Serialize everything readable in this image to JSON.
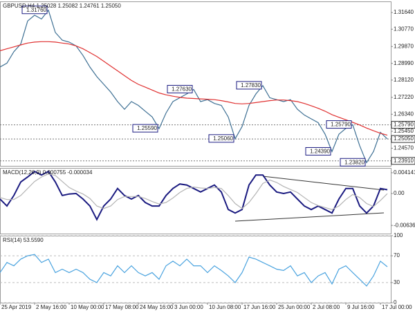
{
  "chart_data": [
    {
      "type": "line",
      "title": "GBPUSD,H4  1.25028 1.25082 1.24761 1.25050",
      "xlim": [
        0,
        56.5
      ],
      "ylim": [
        1.2365,
        1.3222
      ],
      "yticks": [
        {
          "value": 1.3164,
          "label": "1.31640"
        },
        {
          "value": 1.3077,
          "label": "1.30770"
        },
        {
          "value": 1.2987,
          "label": "1.29870"
        },
        {
          "value": 1.2899,
          "label": "1.28990"
        },
        {
          "value": 1.2812,
          "label": "1.28120"
        },
        {
          "value": 1.2722,
          "label": "1.27220"
        },
        {
          "value": 1.2634,
          "label": "1.26340"
        },
        {
          "value": 1.2545,
          "label": "1.25450"
        },
        {
          "value": 1.2457,
          "label": "1.24570"
        }
      ],
      "grid": false,
      "levels": [
        {
          "value": 1.2579,
          "label": "1.25790"
        },
        {
          "value": 1.2505,
          "label": "1.25050"
        },
        {
          "value": 1.2391,
          "label": "1.23910"
        }
      ],
      "annotations": [
        {
          "x": 7,
          "value": 1.3176,
          "label": "1.31760"
        },
        {
          "x": 28,
          "value": 1.2763,
          "label": "1.27630"
        },
        {
          "x": 38,
          "value": 1.2783,
          "label": "1.27830"
        },
        {
          "x": 23,
          "value": 1.2559,
          "label": "1.25590"
        },
        {
          "x": 34,
          "value": 1.2506,
          "label": "1.25060"
        },
        {
          "x": 51,
          "value": 1.2579,
          "label": "1.25790"
        },
        {
          "x": 48,
          "value": 1.2439,
          "label": "1.24390"
        },
        {
          "x": 53,
          "value": 1.2382,
          "label": "1.23820"
        }
      ],
      "series": [
        {
          "color": "#3d6f93",
          "values": [
            1.288,
            1.29,
            1.296,
            1.3,
            1.312,
            1.315,
            1.313,
            1.3176,
            1.306,
            1.302,
            1.301,
            1.299,
            1.294,
            1.288,
            1.283,
            1.279,
            1.275,
            1.27,
            1.266,
            1.27,
            1.268,
            1.265,
            1.262,
            1.2559,
            1.264,
            1.27,
            1.272,
            1.274,
            1.2763,
            1.27,
            1.271,
            1.269,
            1.268,
            1.262,
            1.2506,
            1.257,
            1.268,
            1.274,
            1.2783,
            1.272,
            1.271,
            1.27,
            1.271,
            1.266,
            1.263,
            1.261,
            1.259,
            1.253,
            1.2439,
            1.253,
            1.256,
            1.2579,
            1.247,
            1.2382,
            1.244,
            1.254,
            1.2505
          ]
        },
        {
          "color": "#e03030",
          "values": [
            1.2965,
            1.2975,
            1.2985,
            1.2995,
            1.3005,
            1.301,
            1.3012,
            1.3012,
            1.301,
            1.3005,
            1.3,
            1.299,
            1.2975,
            1.2955,
            1.2935,
            1.291,
            1.2885,
            1.286,
            1.2835,
            1.281,
            1.279,
            1.2775,
            1.276,
            1.2745,
            1.2735,
            1.2728,
            1.2722,
            1.2718,
            1.2716,
            1.2714,
            1.2712,
            1.271,
            1.2705,
            1.2698,
            1.269,
            1.2688,
            1.269,
            1.2695,
            1.27,
            1.2705,
            1.2708,
            1.2708,
            1.2705,
            1.27,
            1.269,
            1.2678,
            1.2665,
            1.265,
            1.2632,
            1.2618,
            1.2605,
            1.2592,
            1.2578,
            1.2562,
            1.2548,
            1.2535,
            1.2525
          ]
        }
      ]
    },
    {
      "type": "line",
      "title": "MACD(12,26,9) 0.000755 -0.000034",
      "xlim": [
        0,
        56.5
      ],
      "ylim": [
        -0.008,
        0.0051
      ],
      "yticks": [
        0.004141,
        {
          "value": 0,
          "label": "0.00"
        },
        -0.006365
      ],
      "grid": false,
      "series": [
        {
          "color": "#1a1a80",
          "values": [
            -0.0011,
            -0.0025,
            -0.0004,
            0.0023,
            0.0033,
            0.0044,
            0.0037,
            0.0044,
            0.0023,
            -0.0004,
            -0.0001,
            0,
            -0.0011,
            -0.0025,
            -0.0052,
            -0.0025,
            -0.0011,
            0.001,
            -0.0004,
            -0.0011,
            -0.0004,
            -0.0018,
            -0.0025,
            -0.0025,
            -0.0004,
            0.001,
            0.0019,
            0.0017,
            0.001,
            0.0003,
            0.001,
            0.0017,
            0.0003,
            -0.0032,
            -0.0039,
            -0.0032,
            0.0017,
            0.0037,
            0.0037,
            0.0017,
            0.0003,
            0,
            0.0003,
            -0.0011,
            -0.0025,
            -0.0032,
            -0.0025,
            -0.0032,
            -0.0039,
            -0.0011,
            0.001,
            0.001,
            -0.0025,
            -0.0039,
            -0.0025,
            0.001,
            0.000755
          ]
        },
        {
          "color": "#b4b4b4",
          "values": [
            -0.0008,
            -0.0012,
            -0.0012,
            -0.0004,
            0.001,
            0.0024,
            0.0033,
            0.0039,
            0.0036,
            0.0024,
            0.0012,
            0.0005,
            -0.0001,
            -0.001,
            -0.0025,
            -0.003,
            -0.0025,
            -0.0012,
            -0.0006,
            -0.0006,
            -0.0006,
            -0.001,
            -0.0016,
            -0.0021,
            -0.0018,
            -0.0009,
            0.0002,
            0.001,
            0.0013,
            0.0011,
            0.001,
            0.0012,
            0.001,
            -0.0004,
            -0.002,
            -0.003,
            -0.0018,
            0,
            0.002,
            0.0027,
            0.0022,
            0.0014,
            0.0008,
            0.0002,
            -0.0008,
            -0.0018,
            -0.0024,
            -0.0028,
            -0.0032,
            -0.0025,
            -0.0012,
            -0.0002,
            -0.0008,
            -0.002,
            -0.0026,
            -0.0014,
            -3.4e-05
          ]
        }
      ]
    },
    {
      "type": "line",
      "title": "RSI(14) 53.5590",
      "xlim": [
        0,
        56.5
      ],
      "ylim": [
        0,
        100
      ],
      "yticks": [
        100,
        70,
        30,
        0
      ],
      "grid": true,
      "xticks": [
        {
          "value": 0,
          "label": "25 Apr 2019"
        },
        {
          "value": 5,
          "label": "2 May 16:00"
        },
        {
          "value": 10,
          "label": "10 May 00:00"
        },
        {
          "value": 15,
          "label": "17 May 08:00"
        },
        {
          "value": 20,
          "label": "24 May 16:00"
        },
        {
          "value": 25,
          "label": "3 Jun 00:00"
        },
        {
          "value": 30,
          "label": "10 Jun 08:00"
        },
        {
          "value": 35,
          "label": "17 Jun 16:00"
        },
        {
          "value": 40,
          "label": "25 Jun 00:00"
        },
        {
          "value": 45,
          "label": "2 Jul 08:00"
        },
        {
          "value": 50,
          "label": "9 Jul 16:00"
        },
        {
          "value": 55,
          "label": "17 Jul 00:00"
        }
      ],
      "series": [
        {
          "color": "#4aa3df",
          "values": [
            45,
            60,
            55,
            65,
            70,
            72,
            60,
            65,
            45,
            50,
            45,
            50,
            45,
            35,
            30,
            45,
            40,
            55,
            45,
            55,
            45,
            40,
            45,
            35,
            55,
            62,
            55,
            65,
            55,
            55,
            45,
            55,
            48,
            40,
            30,
            45,
            68,
            65,
            60,
            55,
            50,
            48,
            55,
            40,
            45,
            30,
            40,
            45,
            28,
            50,
            55,
            45,
            35,
            25,
            40,
            62,
            53.559
          ]
        }
      ]
    }
  ]
}
